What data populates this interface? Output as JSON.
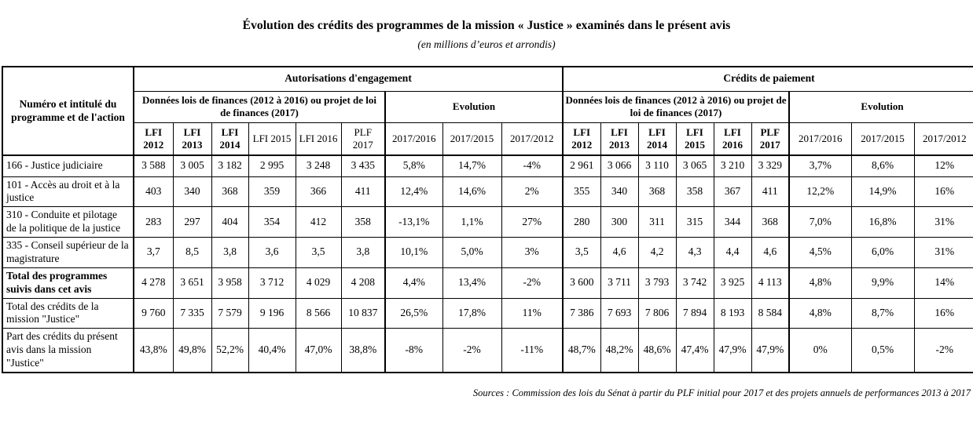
{
  "title": "Évolution des crédits des programmes de la mission « Justice » examinés dans le présent avis",
  "subtitle": "(en millions d’euros et arrondis)",
  "source": "Sources : Commission des lois du Sénat à partir du PLF initial pour 2017 et des projets annuels de performances 2013 à 2017",
  "table": {
    "corner_header": "Numéro et intitulé du programme et de l'action",
    "section_ae": "Autorisations d'engagement",
    "section_cp": "Crédits de paiement",
    "data_subheader": "Données lois de finances (2012 à 2016) ou projet de loi de finances (2017)",
    "evolution_subheader": "Evolution",
    "year_columns": [
      "LFI 2012",
      "LFI 2013",
      "LFI 2014",
      "LFI 2015",
      "LFI 2016",
      "PLF 2017"
    ],
    "evolution_columns": [
      "2017/2016",
      "2017/2015",
      "2017/2012"
    ],
    "rows": [
      {
        "label": "166 - Justice judiciaire",
        "bold": false,
        "ae": [
          "3 588",
          "3 005",
          "3 182",
          "2 995",
          "3 248",
          "3 435"
        ],
        "ae_evolution": [
          "5,8%",
          "14,7%",
          "-4%"
        ],
        "cp": [
          "2 961",
          "3 066",
          "3 110",
          "3 065",
          "3 210",
          "3 329"
        ],
        "cp_evolution": [
          "3,7%",
          "8,6%",
          "12%"
        ]
      },
      {
        "label": "101 - Accès au droit et à la justice",
        "bold": false,
        "ae": [
          "403",
          "340",
          "368",
          "359",
          "366",
          "411"
        ],
        "ae_evolution": [
          "12,4%",
          "14,6%",
          "2%"
        ],
        "cp": [
          "355",
          "340",
          "368",
          "358",
          "367",
          "411"
        ],
        "cp_evolution": [
          "12,2%",
          "14,9%",
          "16%"
        ]
      },
      {
        "label": "310 - Conduite et pilotage de la politique de la justice",
        "bold": false,
        "ae": [
          "283",
          "297",
          "404",
          "354",
          "412",
          "358"
        ],
        "ae_evolution": [
          "-13,1%",
          "1,1%",
          "27%"
        ],
        "cp": [
          "280",
          "300",
          "311",
          "315",
          "344",
          "368"
        ],
        "cp_evolution": [
          "7,0%",
          "16,8%",
          "31%"
        ]
      },
      {
        "label": "335 - Conseil supérieur de la magistrature",
        "bold": false,
        "ae": [
          "3,7",
          "8,5",
          "3,8",
          "3,6",
          "3,5",
          "3,8"
        ],
        "ae_evolution": [
          "10,1%",
          "5,0%",
          "3%"
        ],
        "cp": [
          "3,5",
          "4,6",
          "4,2",
          "4,3",
          "4,4",
          "4,6"
        ],
        "cp_evolution": [
          "4,5%",
          "6,0%",
          "31%"
        ]
      },
      {
        "label": "Total des programmes suivis dans cet avis",
        "bold": true,
        "ae": [
          "4 278",
          "3 651",
          "3 958",
          "3 712",
          "4 029",
          "4 208"
        ],
        "ae_evolution": [
          "4,4%",
          "13,4%",
          "-2%"
        ],
        "cp": [
          "3 600",
          "3 711",
          "3 793",
          "3 742",
          "3 925",
          "4 113"
        ],
        "cp_evolution": [
          "4,8%",
          "9,9%",
          "14%"
        ]
      },
      {
        "label": "Total des crédits de la mission \"Justice\"",
        "bold": false,
        "ae": [
          "9 760",
          "7 335",
          "7 579",
          "9 196",
          "8 566",
          "10 837"
        ],
        "ae_evolution": [
          "26,5%",
          "17,8%",
          "11%"
        ],
        "cp": [
          "7 386",
          "7 693",
          "7 806",
          "7 894",
          "8 193",
          "8 584"
        ],
        "cp_evolution": [
          "4,8%",
          "8,7%",
          "16%"
        ]
      },
      {
        "label": "Part des crédits du présent avis dans la mission \"Justice\"",
        "bold": false,
        "ae": [
          "43,8%",
          "49,8%",
          "52,2%",
          "40,4%",
          "47,0%",
          "38,8%"
        ],
        "ae_evolution": [
          "-8%",
          "-2%",
          "-11%"
        ],
        "cp": [
          "48,7%",
          "48,2%",
          "48,6%",
          "47,4%",
          "47,9%",
          "47,9%"
        ],
        "cp_evolution": [
          "0%",
          "0,5%",
          "-2%"
        ]
      }
    ]
  }
}
